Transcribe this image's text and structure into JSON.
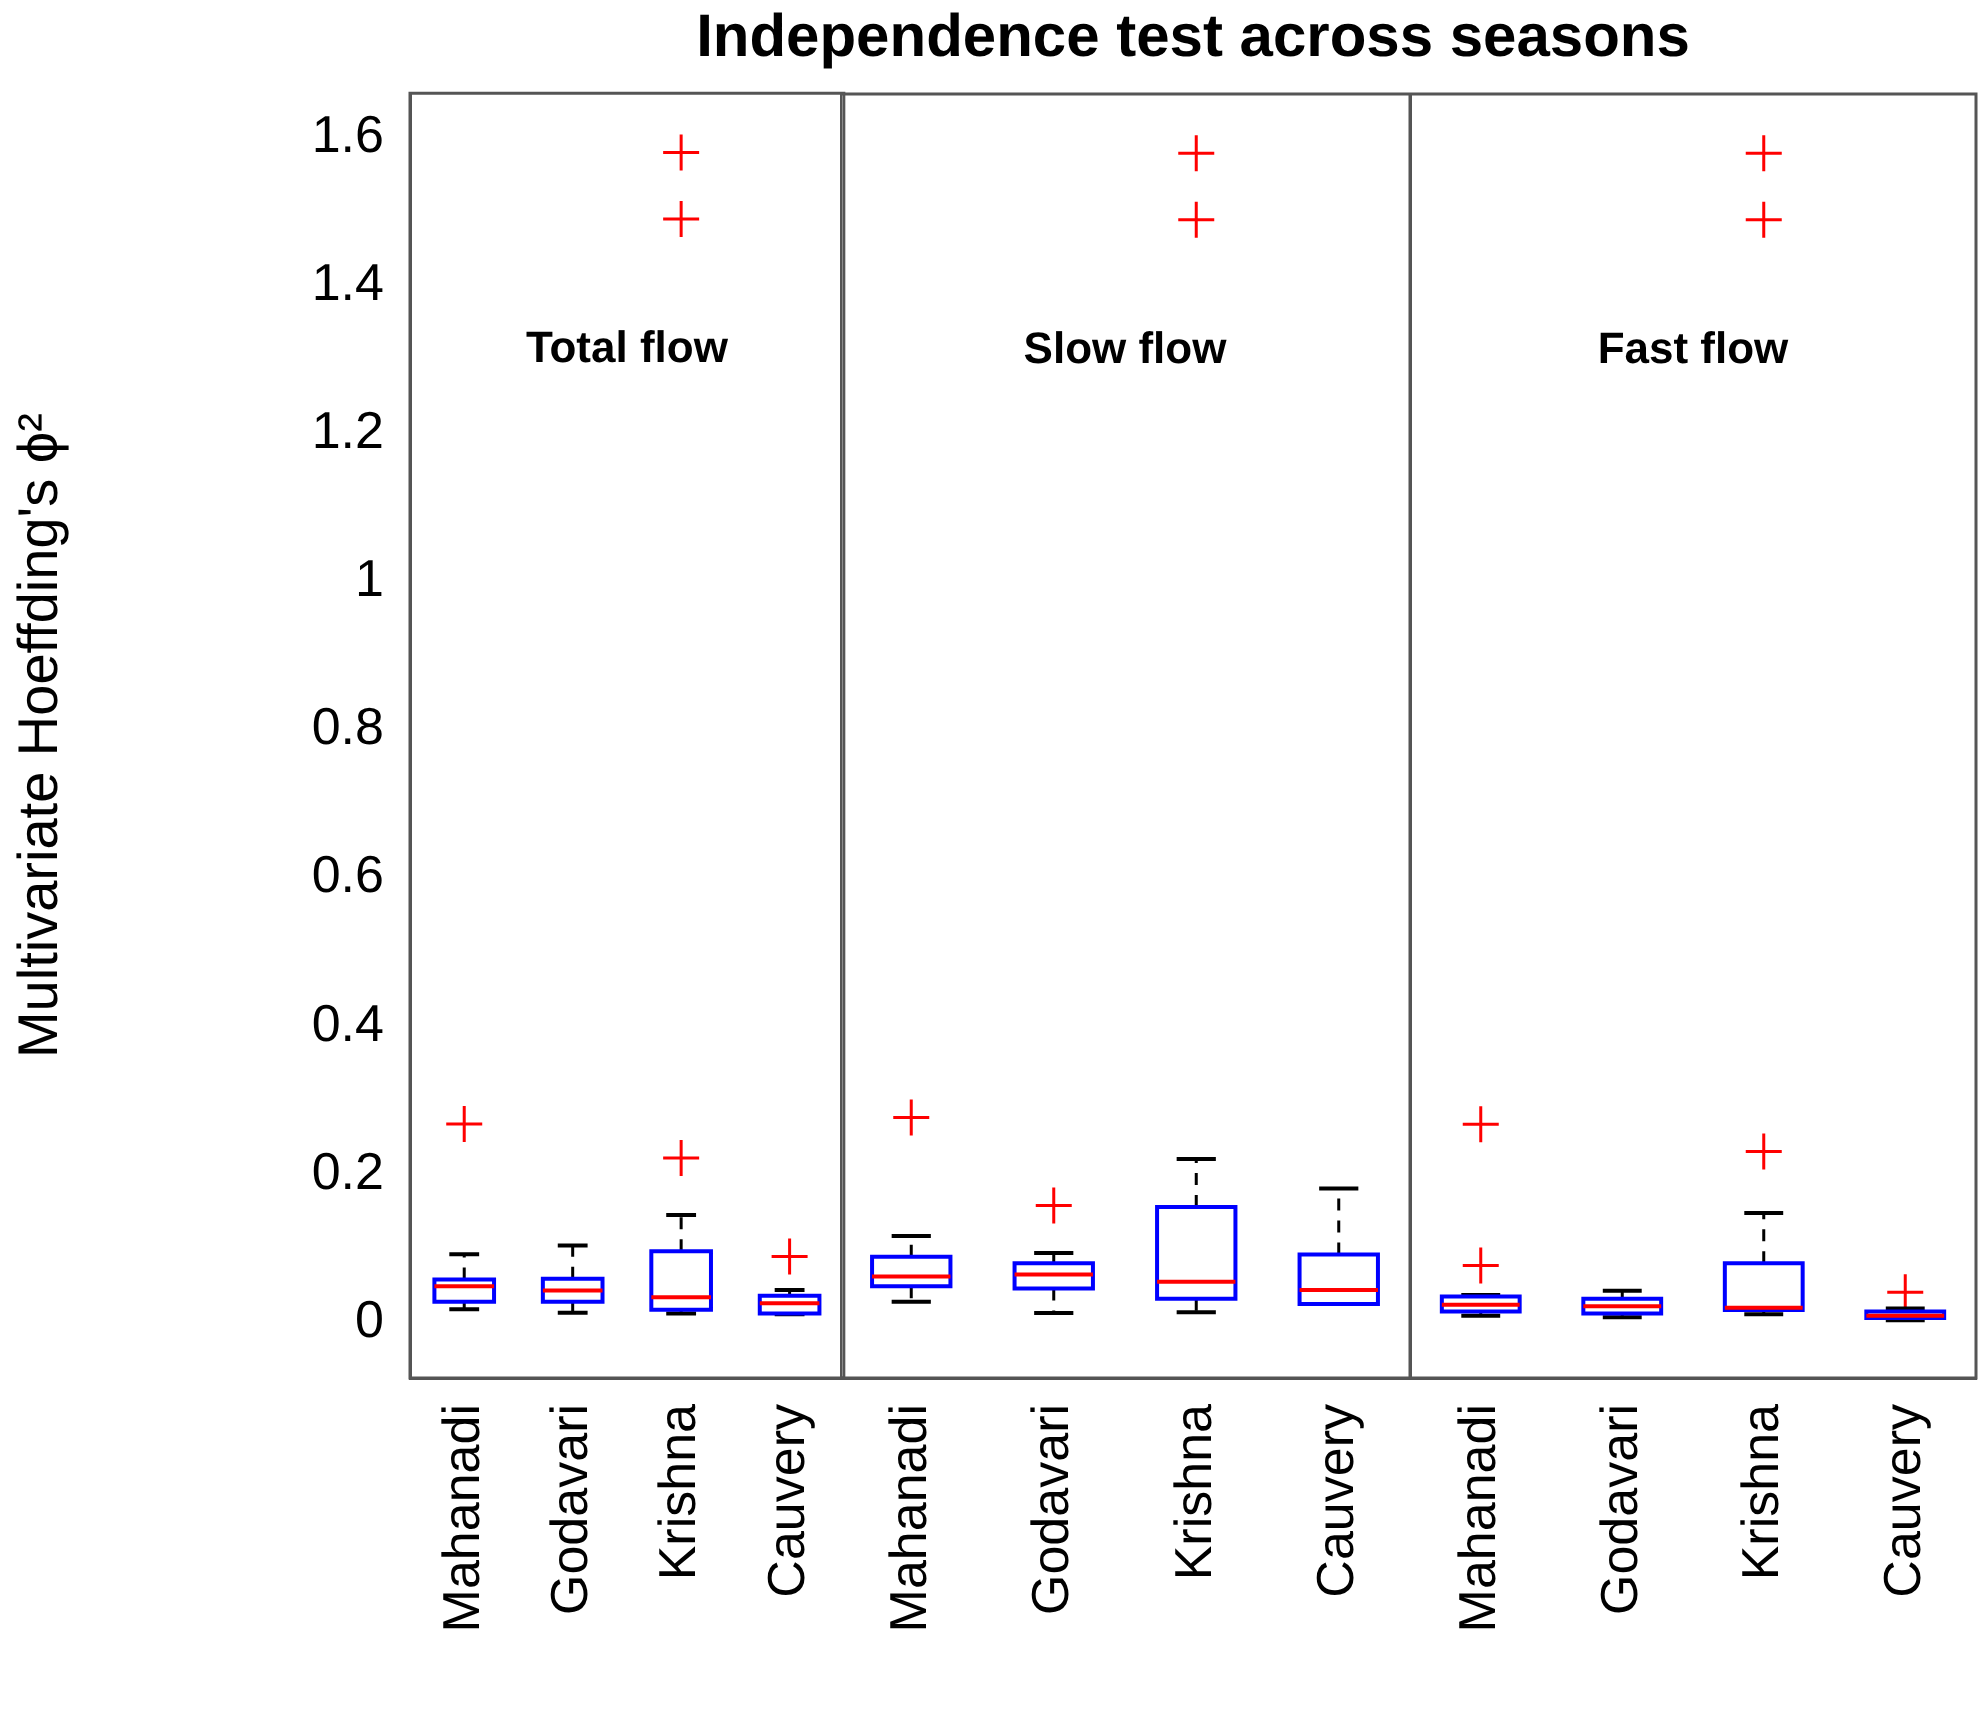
{
  "chart_data": [
    {
      "type": "box",
      "title": "Independence test across seasons",
      "ylabel": "Multivariate Hoeffding's ϕ²",
      "annotations": [
        "Total flow"
      ],
      "categories": [
        "Mahanadi",
        "Godavari",
        "Krishna",
        "Cauvery"
      ],
      "ylim": [
        -0.075,
        1.66
      ],
      "yticks": [
        0,
        0.2,
        0.4,
        0.6,
        0.8,
        1,
        1.2,
        1.4,
        1.6
      ],
      "marker": "cross",
      "series": [
        {
          "color": "#0000ff",
          "boxes": [
            {
              "low": 0.018,
              "q1": 0.028,
              "median": 0.049,
              "q3": 0.058,
              "high": 0.092,
              "outliers": [
                0.268
              ]
            },
            {
              "low": 0.013,
              "q1": 0.028,
              "median": 0.043,
              "q3": 0.059,
              "high": 0.104
            },
            {
              "low": 0.012,
              "q1": 0.017,
              "median": 0.034,
              "q3": 0.096,
              "high": 0.145,
              "outliers": [
                0.222,
                1.49,
                1.58
              ]
            },
            {
              "low": 0.011,
              "q1": 0.012,
              "median": 0.026,
              "q3": 0.036,
              "high": 0.044,
              "outliers": [
                0.089
              ]
            }
          ]
        }
      ]
    },
    {
      "type": "box",
      "annotations": [
        "Slow flow"
      ],
      "categories": [
        "Mahanadi",
        "Godavari",
        "Krishna",
        "Cauvery"
      ],
      "ylim": [
        -0.075,
        1.66
      ],
      "yticks": [
        0,
        0.2,
        0.4,
        0.6,
        0.8,
        1,
        1.2,
        1.4,
        1.6
      ],
      "tick_labels": "x",
      "marker": "cross",
      "series": [
        {
          "color": "#0000ff",
          "boxes": [
            {
              "low": 0.028,
              "q1": 0.049,
              "median": 0.062,
              "q3": 0.089,
              "high": 0.117,
              "outliers": [
                0.277
              ]
            },
            {
              "low": 0.013,
              "q1": 0.046,
              "median": 0.065,
              "q3": 0.08,
              "high": 0.094,
              "outliers": [
                0.158
              ]
            },
            {
              "low": 0.014,
              "q1": 0.032,
              "median": 0.055,
              "q3": 0.156,
              "high": 0.221,
              "outliers": [
                1.49,
                1.58
              ]
            },
            {
              "low": 0.025,
              "q1": 0.025,
              "median": 0.044,
              "q3": 0.092,
              "high": 0.181
            }
          ]
        }
      ]
    },
    {
      "type": "box",
      "annotations": [
        "Fast flow"
      ],
      "categories": [
        "Mahanadi",
        "Godavari",
        "Krishna",
        "Cauvery"
      ],
      "ylim": [
        -0.075,
        1.66
      ],
      "yticks": [
        0,
        0.2,
        0.4,
        0.6,
        0.8,
        1,
        1.2,
        1.4,
        1.6
      ],
      "tick_labels": "x",
      "marker": "cross",
      "series": [
        {
          "color": "#0000ff",
          "boxes": [
            {
              "low": 0.009,
              "q1": 0.015,
              "median": 0.024,
              "q3": 0.035,
              "high": 0.037,
              "outliers": [
                0.077,
                0.268
              ]
            },
            {
              "low": 0.007,
              "q1": 0.012,
              "median": 0.022,
              "q3": 0.032,
              "high": 0.043
            },
            {
              "low": 0.011,
              "q1": 0.017,
              "median": 0.02,
              "q3": 0.08,
              "high": 0.148,
              "outliers": [
                0.231,
                1.49,
                1.58
              ]
            },
            {
              "low": 0.003,
              "q1": 0.006,
              "median": 0.009,
              "q3": 0.015,
              "high": 0.019,
              "outliers": [
                0.041
              ]
            }
          ]
        }
      ]
    }
  ]
}
